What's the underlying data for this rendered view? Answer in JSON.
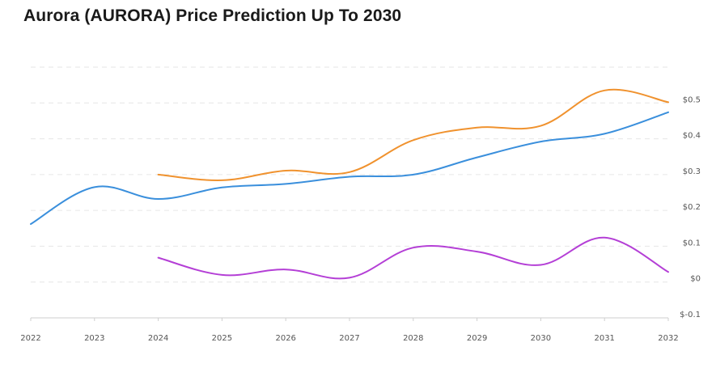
{
  "chart_data": {
    "type": "line",
    "title": "Aurora (AURORA) Price Prediction Up To 2030",
    "x": [
      2022,
      2023,
      2024,
      2025,
      2026,
      2027,
      2028,
      2029,
      2030,
      2031,
      2032
    ],
    "xticks": [
      "2022",
      "2023",
      "2024",
      "2025",
      "2026",
      "2027",
      "2028",
      "2029",
      "2030",
      "2031",
      "2032"
    ],
    "yticks": [
      "$-0.1",
      "$0",
      "$0.1",
      "$0.2",
      "$0.3",
      "$0.4",
      "$0.5"
    ],
    "ylim": [
      -0.1,
      0.6
    ],
    "grid": true,
    "series": [
      {
        "color": "#3a8fdc",
        "values": [
          0.162,
          0.265,
          0.232,
          0.264,
          0.274,
          0.294,
          0.3,
          0.348,
          0.392,
          0.414,
          0.474
        ]
      },
      {
        "color": "#f0922e",
        "values": [
          null,
          null,
          0.3,
          0.284,
          0.311,
          0.307,
          0.396,
          0.431,
          0.436,
          0.535,
          0.502
        ]
      },
      {
        "color": "#b43fd6",
        "values": [
          null,
          null,
          0.068,
          0.02,
          0.035,
          0.012,
          0.096,
          0.085,
          0.048,
          0.124,
          0.028
        ]
      }
    ]
  }
}
